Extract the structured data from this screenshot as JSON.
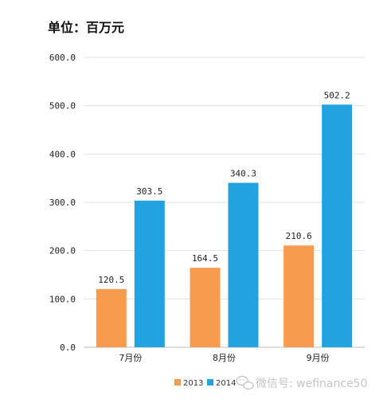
{
  "chart_data": {
    "type": "bar",
    "title": "单位：百万元",
    "categories": [
      "7月份",
      "8月份",
      "9月份"
    ],
    "series": [
      {
        "name": "2013",
        "color": "#F79B4F",
        "values": [
          120.5,
          164.5,
          210.6
        ],
        "labels": [
          "120.5",
          "164.5",
          "210.6"
        ]
      },
      {
        "name": "2014",
        "color": "#22A3E0",
        "values": [
          303.5,
          340.3,
          502.2
        ],
        "labels": [
          "303.5",
          "340.3",
          "502.2"
        ]
      }
    ],
    "ylim": [
      0,
      600
    ],
    "yticks": [
      "0.0",
      "100.0",
      "200.0",
      "300.0",
      "400.0",
      "500.0",
      "600.0"
    ],
    "grid": true,
    "legend_position": "bottom"
  },
  "watermark": {
    "icon": "wechat-icon",
    "text": "微信号: wefinance50"
  }
}
